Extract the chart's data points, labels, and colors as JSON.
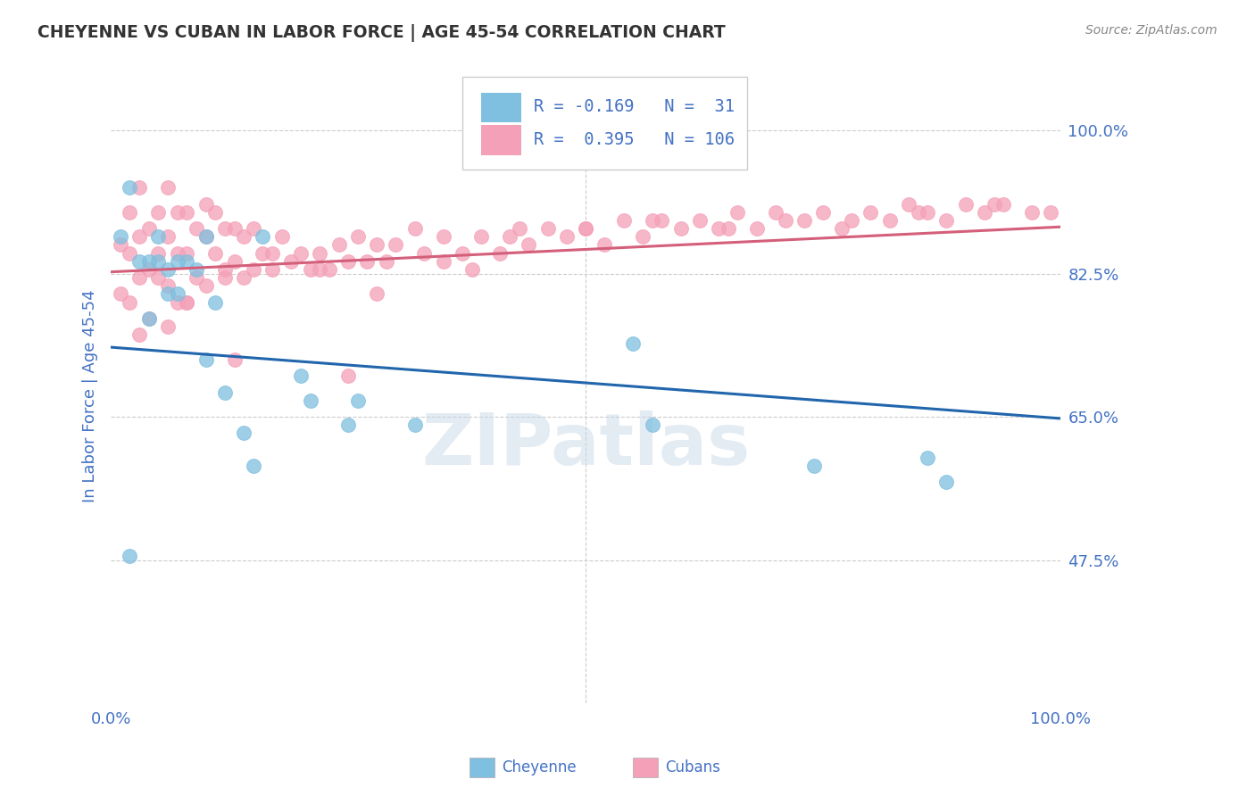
{
  "title": "CHEYENNE VS CUBAN IN LABOR FORCE | AGE 45-54 CORRELATION CHART",
  "source": "Source: ZipAtlas.com",
  "ylabel": "In Labor Force | Age 45-54",
  "xlim": [
    0.0,
    1.0
  ],
  "ylim": [
    0.3,
    1.05
  ],
  "yticks": [
    0.475,
    0.65,
    0.825,
    1.0
  ],
  "ytick_labels": [
    "47.5%",
    "65.0%",
    "82.5%",
    "100.0%"
  ],
  "cheyenne_color": "#7fbfdf",
  "cuban_color": "#f4a0b8",
  "cheyenne_line_color": "#2166ac",
  "cuban_line_color": "#d45f7a",
  "R_cheyenne": -0.169,
  "N_cheyenne": 31,
  "R_cuban": 0.395,
  "N_cuban": 106,
  "cheyenne_line_start_y": 0.735,
  "cheyenne_line_end_y": 0.648,
  "cuban_line_start_y": 0.827,
  "cuban_line_end_y": 0.882,
  "watermark": "ZIPatlas",
  "background_color": "#ffffff",
  "grid_color": "#cccccc",
  "title_color": "#333333",
  "label_color": "#4472c4",
  "cheyenne_scatter_x": [
    0.01,
    0.02,
    0.03,
    0.04,
    0.04,
    0.05,
    0.05,
    0.06,
    0.06,
    0.07,
    0.07,
    0.08,
    0.09,
    0.1,
    0.1,
    0.11,
    0.12,
    0.14,
    0.15,
    0.16,
    0.2,
    0.21,
    0.25,
    0.26,
    0.32,
    0.55,
    0.57,
    0.74,
    0.86,
    0.88,
    0.02
  ],
  "cheyenne_scatter_y": [
    0.87,
    0.93,
    0.84,
    0.84,
    0.77,
    0.84,
    0.87,
    0.83,
    0.8,
    0.84,
    0.8,
    0.84,
    0.83,
    0.72,
    0.87,
    0.79,
    0.68,
    0.63,
    0.59,
    0.87,
    0.7,
    0.67,
    0.64,
    0.67,
    0.64,
    0.74,
    0.64,
    0.59,
    0.6,
    0.57,
    0.48
  ],
  "cuban_scatter_x": [
    0.01,
    0.01,
    0.02,
    0.02,
    0.02,
    0.03,
    0.03,
    0.03,
    0.04,
    0.04,
    0.04,
    0.05,
    0.05,
    0.05,
    0.06,
    0.06,
    0.06,
    0.07,
    0.07,
    0.07,
    0.08,
    0.08,
    0.08,
    0.09,
    0.09,
    0.1,
    0.1,
    0.1,
    0.11,
    0.11,
    0.12,
    0.12,
    0.13,
    0.13,
    0.14,
    0.14,
    0.15,
    0.15,
    0.16,
    0.17,
    0.18,
    0.19,
    0.2,
    0.21,
    0.22,
    0.23,
    0.24,
    0.25,
    0.26,
    0.27,
    0.28,
    0.29,
    0.3,
    0.32,
    0.33,
    0.35,
    0.37,
    0.38,
    0.39,
    0.41,
    0.43,
    0.44,
    0.46,
    0.48,
    0.5,
    0.52,
    0.54,
    0.56,
    0.58,
    0.6,
    0.62,
    0.64,
    0.66,
    0.68,
    0.71,
    0.73,
    0.75,
    0.77,
    0.8,
    0.82,
    0.84,
    0.86,
    0.88,
    0.9,
    0.92,
    0.94,
    0.97,
    0.99,
    0.03,
    0.06,
    0.08,
    0.12,
    0.17,
    0.22,
    0.28,
    0.35,
    0.42,
    0.5,
    0.57,
    0.65,
    0.7,
    0.78,
    0.85,
    0.93,
    0.13,
    0.25
  ],
  "cuban_scatter_y": [
    0.86,
    0.8,
    0.9,
    0.85,
    0.79,
    0.93,
    0.87,
    0.82,
    0.88,
    0.83,
    0.77,
    0.9,
    0.85,
    0.82,
    0.93,
    0.87,
    0.81,
    0.9,
    0.85,
    0.79,
    0.9,
    0.85,
    0.79,
    0.88,
    0.82,
    0.91,
    0.87,
    0.81,
    0.9,
    0.85,
    0.88,
    0.83,
    0.88,
    0.84,
    0.87,
    0.82,
    0.88,
    0.83,
    0.85,
    0.83,
    0.87,
    0.84,
    0.85,
    0.83,
    0.85,
    0.83,
    0.86,
    0.84,
    0.87,
    0.84,
    0.86,
    0.84,
    0.86,
    0.88,
    0.85,
    0.87,
    0.85,
    0.83,
    0.87,
    0.85,
    0.88,
    0.86,
    0.88,
    0.87,
    0.88,
    0.86,
    0.89,
    0.87,
    0.89,
    0.88,
    0.89,
    0.88,
    0.9,
    0.88,
    0.89,
    0.89,
    0.9,
    0.88,
    0.9,
    0.89,
    0.91,
    0.9,
    0.89,
    0.91,
    0.9,
    0.91,
    0.9,
    0.9,
    0.75,
    0.76,
    0.79,
    0.82,
    0.85,
    0.83,
    0.8,
    0.84,
    0.87,
    0.88,
    0.89,
    0.88,
    0.9,
    0.89,
    0.9,
    0.91,
    0.72,
    0.7
  ]
}
